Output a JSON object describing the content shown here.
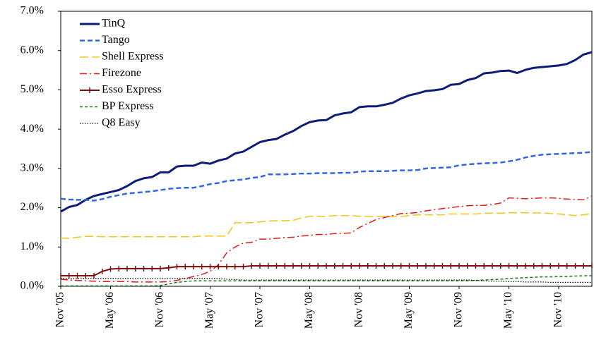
{
  "chart_data": {
    "type": "line",
    "categories": [
      "Nov '05",
      null,
      null,
      null,
      null,
      null,
      "May '06",
      null,
      null,
      null,
      null,
      null,
      "Nov '06",
      null,
      null,
      null,
      null,
      null,
      "May '07",
      null,
      null,
      null,
      null,
      null,
      "Nov '07",
      null,
      null,
      null,
      null,
      null,
      "May '08",
      null,
      null,
      null,
      null,
      null,
      "Nov '08",
      null,
      null,
      null,
      null,
      null,
      "May '09",
      null,
      null,
      null,
      null,
      null,
      "Nov '09",
      null,
      null,
      null,
      null,
      null,
      "May '10",
      null,
      null,
      null,
      null,
      null,
      "Nov '10",
      null,
      null,
      null,
      null
    ],
    "ylim": [
      0,
      7
    ],
    "yticks": [
      {
        "value": 0,
        "label": "0.0%"
      },
      {
        "value": 1,
        "label": "1.0%"
      },
      {
        "value": 2,
        "label": "2.0%"
      },
      {
        "value": 3,
        "label": "3.0%"
      },
      {
        "value": 4,
        "label": "4.0%"
      },
      {
        "value": 5,
        "label": "5.0%"
      },
      {
        "value": 6,
        "label": "6.0%"
      },
      {
        "value": 7,
        "label": "7.0%"
      }
    ],
    "legend": "top-left",
    "series": [
      {
        "name": "TinQ",
        "color": "#0c1c78",
        "style": "solid",
        "values": [
          1.9,
          2.02,
          2.07,
          2.2,
          2.3,
          2.35,
          2.4,
          2.45,
          2.55,
          2.68,
          2.75,
          2.78,
          2.9,
          2.9,
          3.05,
          3.07,
          3.07,
          3.15,
          3.12,
          3.2,
          3.25,
          3.38,
          3.43,
          3.55,
          3.67,
          3.72,
          3.75,
          3.86,
          3.95,
          4.08,
          4.18,
          4.22,
          4.23,
          4.35,
          4.4,
          4.43,
          4.56,
          4.58,
          4.58,
          4.62,
          4.67,
          4.78,
          4.86,
          4.91,
          4.97,
          4.99,
          5.02,
          5.13,
          5.15,
          5.25,
          5.3,
          5.42,
          5.44,
          5.48,
          5.49,
          5.43,
          5.51,
          5.56,
          5.58,
          5.6,
          5.62,
          5.66,
          5.76,
          5.9,
          5.96
        ]
      },
      {
        "name": "Tango",
        "color": "#3366e6",
        "style": "dashed",
        "values": [
          2.23,
          2.21,
          2.2,
          2.2,
          2.18,
          2.22,
          2.28,
          2.32,
          2.36,
          2.38,
          2.4,
          2.42,
          2.45,
          2.48,
          2.5,
          2.51,
          2.51,
          2.55,
          2.6,
          2.63,
          2.68,
          2.7,
          2.72,
          2.76,
          2.78,
          2.85,
          2.85,
          2.85,
          2.86,
          2.87,
          2.87,
          2.88,
          2.88,
          2.88,
          2.89,
          2.89,
          2.92,
          2.93,
          2.93,
          2.93,
          2.94,
          2.95,
          2.95,
          2.96,
          3.0,
          3.01,
          3.02,
          3.03,
          3.08,
          3.1,
          3.12,
          3.13,
          3.14,
          3.15,
          3.18,
          3.22,
          3.28,
          3.32,
          3.35,
          3.36,
          3.37,
          3.38,
          3.39,
          3.4,
          3.42
        ]
      },
      {
        "name": "Shell Express",
        "color": "#f5c518",
        "style": "longdash",
        "values": [
          1.23,
          1.22,
          1.25,
          1.27,
          1.27,
          1.26,
          1.26,
          1.26,
          1.26,
          1.26,
          1.26,
          1.26,
          1.26,
          1.26,
          1.26,
          1.26,
          1.26,
          1.28,
          1.28,
          1.28,
          1.28,
          1.62,
          1.62,
          1.62,
          1.64,
          1.66,
          1.67,
          1.67,
          1.68,
          1.74,
          1.78,
          1.78,
          1.78,
          1.8,
          1.8,
          1.8,
          1.78,
          1.78,
          1.78,
          1.78,
          1.78,
          1.78,
          1.8,
          1.82,
          1.82,
          1.82,
          1.82,
          1.84,
          1.84,
          1.84,
          1.84,
          1.86,
          1.86,
          1.86,
          1.87,
          1.87,
          1.87,
          1.87,
          1.87,
          1.85,
          1.84,
          1.82,
          1.8,
          1.82,
          1.85
        ]
      },
      {
        "name": "Firezone",
        "color": "#e01b1b",
        "style": "dashdot",
        "values": [
          0.18,
          0.16,
          0.15,
          0.14,
          0.13,
          0.12,
          0.12,
          0.12,
          0.12,
          0.11,
          0.11,
          0.11,
          0.11,
          0.12,
          0.15,
          0.2,
          0.25,
          0.3,
          0.38,
          0.55,
          0.85,
          1.0,
          1.1,
          1.12,
          1.2,
          1.2,
          1.22,
          1.24,
          1.25,
          1.28,
          1.3,
          1.32,
          1.32,
          1.34,
          1.35,
          1.36,
          1.5,
          1.6,
          1.7,
          1.75,
          1.8,
          1.85,
          1.86,
          1.88,
          1.92,
          1.95,
          1.98,
          2.0,
          2.03,
          2.05,
          2.06,
          2.06,
          2.08,
          2.12,
          2.25,
          2.24,
          2.23,
          2.24,
          2.25,
          2.25,
          2.24,
          2.22,
          2.21,
          2.2,
          2.3
        ]
      },
      {
        "name": "Esso Express",
        "color": "#7a0d0d",
        "style": "markers",
        "values": [
          0.27,
          0.27,
          0.27,
          0.27,
          0.27,
          0.38,
          0.44,
          0.45,
          0.45,
          0.45,
          0.45,
          0.45,
          0.45,
          0.47,
          0.5,
          0.5,
          0.5,
          0.5,
          0.5,
          0.5,
          0.5,
          0.5,
          0.5,
          0.52,
          0.52,
          0.52,
          0.52,
          0.52,
          0.52,
          0.52,
          0.52,
          0.52,
          0.52,
          0.52,
          0.52,
          0.52,
          0.52,
          0.52,
          0.52,
          0.52,
          0.52,
          0.52,
          0.52,
          0.52,
          0.52,
          0.52,
          0.52,
          0.52,
          0.52,
          0.52,
          0.52,
          0.52,
          0.52,
          0.52,
          0.52,
          0.52,
          0.52,
          0.52,
          0.52,
          0.52,
          0.52,
          0.52,
          0.52,
          0.52,
          0.52
        ]
      },
      {
        "name": "BP Express",
        "color": "#1a7a1a",
        "style": "shortdash",
        "values": [
          0.01,
          0.01,
          0.01,
          0.01,
          0.01,
          0.01,
          0.01,
          0.01,
          0.01,
          0.01,
          0.01,
          0.01,
          0.02,
          0.06,
          0.1,
          0.12,
          0.14,
          0.14,
          0.14,
          0.14,
          0.14,
          0.14,
          0.14,
          0.14,
          0.14,
          0.14,
          0.14,
          0.14,
          0.14,
          0.14,
          0.14,
          0.14,
          0.14,
          0.14,
          0.14,
          0.14,
          0.14,
          0.14,
          0.14,
          0.14,
          0.14,
          0.14,
          0.14,
          0.14,
          0.14,
          0.14,
          0.14,
          0.14,
          0.14,
          0.14,
          0.15,
          0.16,
          0.17,
          0.18,
          0.2,
          0.21,
          0.22,
          0.23,
          0.24,
          0.24,
          0.25,
          0.25,
          0.26,
          0.27,
          0.27
        ]
      },
      {
        "name": "Q8 Easy",
        "color": "#000000",
        "style": "dotted",
        "values": [
          0.2,
          0.2,
          0.2,
          0.2,
          0.2,
          0.2,
          0.2,
          0.2,
          0.2,
          0.2,
          0.2,
          0.2,
          0.2,
          0.2,
          0.2,
          0.2,
          0.2,
          0.2,
          0.2,
          0.2,
          0.18,
          0.17,
          0.16,
          0.16,
          0.16,
          0.16,
          0.16,
          0.16,
          0.16,
          0.16,
          0.16,
          0.16,
          0.16,
          0.16,
          0.16,
          0.16,
          0.16,
          0.16,
          0.16,
          0.16,
          0.16,
          0.16,
          0.16,
          0.16,
          0.16,
          0.16,
          0.16,
          0.16,
          0.16,
          0.16,
          0.15,
          0.14,
          0.13,
          0.13,
          0.12,
          0.12,
          0.11,
          0.11,
          0.11,
          0.1,
          0.1,
          0.1,
          0.1,
          0.1,
          0.1
        ]
      }
    ]
  }
}
